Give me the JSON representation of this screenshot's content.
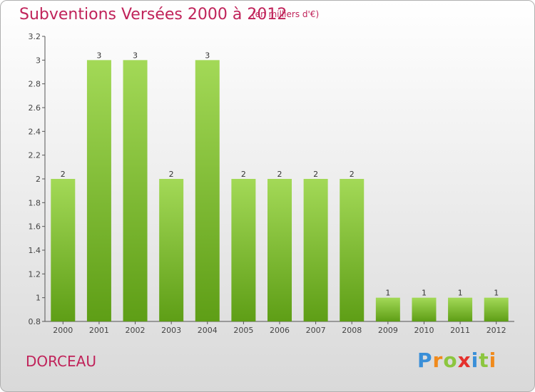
{
  "header": {
    "title": "Subventions Versées 2000 à 2012",
    "subtitle": "(en milliers d'€)"
  },
  "footer": {
    "town": "DORCEAU",
    "logo_letters": [
      {
        "ch": "P",
        "color": "#3a8fd8"
      },
      {
        "ch": "r",
        "color": "#f08a1c"
      },
      {
        "ch": "o",
        "color": "#8cc63f"
      },
      {
        "ch": "x",
        "color": "#e5312d"
      },
      {
        "ch": "i",
        "color": "#3a8fd8"
      },
      {
        "ch": "t",
        "color": "#8cc63f"
      },
      {
        "ch": "i",
        "color": "#f08a1c"
      }
    ]
  },
  "colors": {
    "bar_light": "#a3d957",
    "bar_dark": "#5e9e16",
    "axis": "#555555",
    "title": "#c0235a"
  },
  "chart_data": {
    "type": "bar",
    "title": "Subventions Versées 2000 à 2012",
    "subtitle": "(en milliers d'€)",
    "xlabel": "",
    "ylabel": "",
    "categories": [
      "2000",
      "2001",
      "2002",
      "2003",
      "2004",
      "2005",
      "2006",
      "2007",
      "2008",
      "2009",
      "2010",
      "2011",
      "2012"
    ],
    "values": [
      2,
      3,
      3,
      2,
      3,
      2,
      2,
      2,
      2,
      1,
      1,
      1,
      1
    ],
    "data_labels": [
      "2",
      "3",
      "3",
      "2",
      "3",
      "2",
      "2",
      "2",
      "2",
      "1",
      "1",
      "1",
      "1"
    ],
    "ylim": [
      0.8,
      3.2
    ],
    "yticks": [
      0.8,
      1,
      1.2,
      1.4,
      1.6,
      1.8,
      2,
      2.2,
      2.4,
      2.6,
      2.8,
      3,
      3.2
    ],
    "ytick_labels": [
      "0.8",
      "1",
      "1.2",
      "1.4",
      "1.6",
      "1.8",
      "2",
      "2.2",
      "2.4",
      "2.6",
      "2.8",
      "3",
      "3.2"
    ],
    "grid": false,
    "legend": "none"
  }
}
